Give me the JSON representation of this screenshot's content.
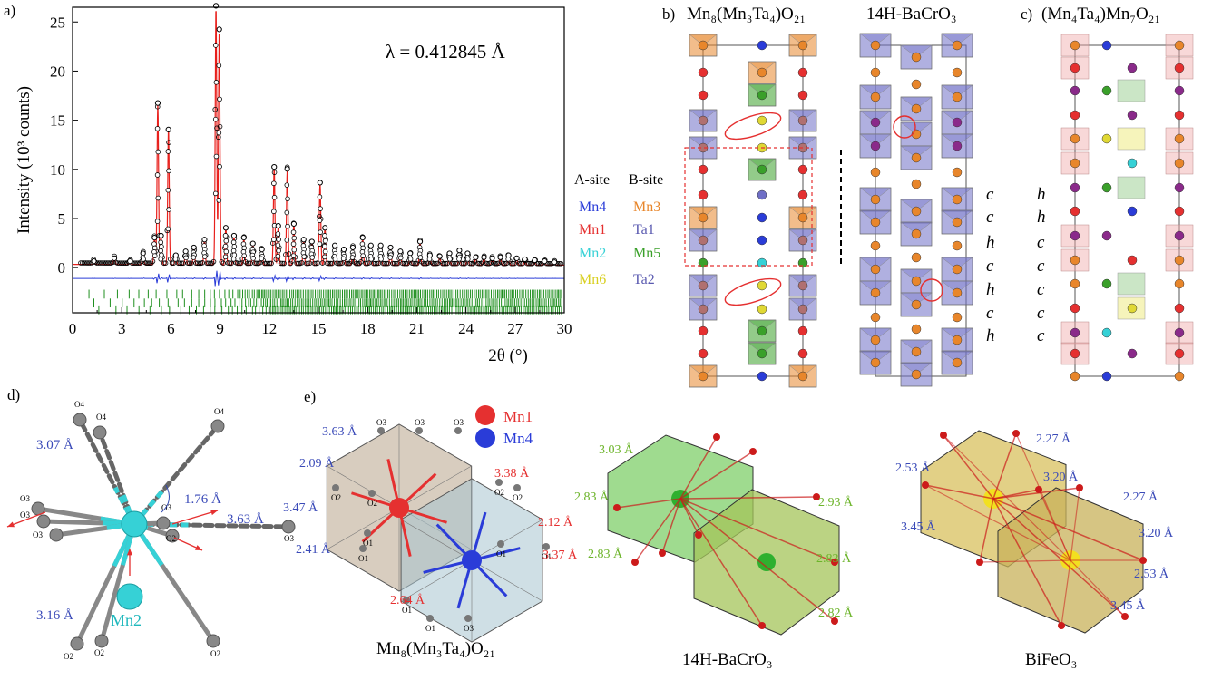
{
  "panel_letters": {
    "a": "a)",
    "b": "b)",
    "c": "c)",
    "d": "d)",
    "e": "e)"
  },
  "colors": {
    "obs": "#000000",
    "calc": "#e8201c",
    "diff": "#2a3cd8",
    "ticks": "#1f8f1f",
    "mn1": "#e53030",
    "mn2": "#36d1d6",
    "mn3": "#e8862b",
    "mn4": "#2a3cd8",
    "mn5": "#3aa02a",
    "mn6": "#e0d834",
    "ta": "#6f6fc6",
    "purple": "#8a2a8a",
    "o": "#cc1b1b",
    "o_grey": "#7a7a7a"
  },
  "chart_data": {
    "type": "line",
    "title": "",
    "annotation": "λ =  0.412845 Å",
    "xlabel": "2θ (°)",
    "ylabel": "Intensity (10³ counts)",
    "xlim": [
      0,
      30
    ],
    "ylim": [
      -4.6,
      26.5
    ],
    "xticks": [
      0,
      3,
      6,
      9,
      12,
      15,
      18,
      21,
      24,
      27,
      30
    ],
    "yticks": [
      0,
      5,
      10,
      15,
      20,
      25
    ],
    "peaks": [
      {
        "x": 1.3,
        "y": 0.4
      },
      {
        "x": 2.55,
        "y": 0.7
      },
      {
        "x": 3.5,
        "y": 0.4
      },
      {
        "x": 4.3,
        "y": 1.2
      },
      {
        "x": 5.0,
        "y": 2.8
      },
      {
        "x": 5.2,
        "y": 16.5
      },
      {
        "x": 5.4,
        "y": 3.0
      },
      {
        "x": 5.85,
        "y": 13.8
      },
      {
        "x": 6.3,
        "y": 1.0
      },
      {
        "x": 6.9,
        "y": 1.4
      },
      {
        "x": 7.4,
        "y": 1.8
      },
      {
        "x": 8.05,
        "y": 2.6
      },
      {
        "x": 8.75,
        "y": 26.4
      },
      {
        "x": 8.95,
        "y": 24.0
      },
      {
        "x": 9.35,
        "y": 3.8
      },
      {
        "x": 9.85,
        "y": 3.0
      },
      {
        "x": 10.45,
        "y": 2.8
      },
      {
        "x": 11.0,
        "y": 2.2
      },
      {
        "x": 11.55,
        "y": 1.6
      },
      {
        "x": 12.3,
        "y": 10.0
      },
      {
        "x": 12.55,
        "y": 4.0
      },
      {
        "x": 13.1,
        "y": 9.8
      },
      {
        "x": 13.5,
        "y": 4.2
      },
      {
        "x": 14.1,
        "y": 2.6
      },
      {
        "x": 14.6,
        "y": 2.4
      },
      {
        "x": 15.1,
        "y": 8.4
      },
      {
        "x": 15.4,
        "y": 3.8
      },
      {
        "x": 16.0,
        "y": 2.0
      },
      {
        "x": 16.55,
        "y": 1.6
      },
      {
        "x": 17.1,
        "y": 1.8
      },
      {
        "x": 17.7,
        "y": 2.8
      },
      {
        "x": 18.2,
        "y": 2.0
      },
      {
        "x": 18.8,
        "y": 2.0
      },
      {
        "x": 19.4,
        "y": 1.8
      },
      {
        "x": 20.0,
        "y": 1.4
      },
      {
        "x": 20.6,
        "y": 1.2
      },
      {
        "x": 21.2,
        "y": 2.4
      },
      {
        "x": 21.8,
        "y": 1.0
      },
      {
        "x": 22.4,
        "y": 0.9
      },
      {
        "x": 23.0,
        "y": 1.2
      },
      {
        "x": 23.6,
        "y": 1.5
      },
      {
        "x": 24.1,
        "y": 1.2
      },
      {
        "x": 24.6,
        "y": 0.8
      },
      {
        "x": 25.1,
        "y": 0.8
      },
      {
        "x": 25.6,
        "y": 0.7
      },
      {
        "x": 26.1,
        "y": 0.8
      },
      {
        "x": 26.6,
        "y": 1.0
      },
      {
        "x": 27.1,
        "y": 0.7
      },
      {
        "x": 27.6,
        "y": 0.6
      },
      {
        "x": 28.2,
        "y": 0.5
      },
      {
        "x": 28.8,
        "y": 0.4
      },
      {
        "x": 29.4,
        "y": 0.3
      }
    ],
    "difference_offset": -1.1,
    "ticks_row1_offset": -2.7,
    "ticks_row2_offset": -3.6,
    "ticks_row3_offset": -4.3
  },
  "panel_b": {
    "title1": "Mn₈(Mn₃Ta₄)O₂₁",
    "title2": "14H-BaCrO₃",
    "site_header_a": "A-site",
    "site_header_b": "B-site",
    "a_sites": [
      "Mn4",
      "Mn1",
      "Mn2",
      "Mn6"
    ],
    "b_sites": [
      "Mn3",
      "Ta1",
      "Mn5",
      "Ta2"
    ],
    "stacking": [
      "c",
      "c",
      "h",
      "c",
      "h",
      "c",
      "h"
    ]
  },
  "panel_c": {
    "title": "(Mn₄Ta₄)Mn₇O₂₁",
    "stacking": [
      "h",
      "h",
      "c",
      "c",
      "c",
      "c",
      "c"
    ]
  },
  "panel_d": {
    "distances": [
      "3.07 Å",
      "1.76 Å",
      "3.63 Å",
      "3.16 Å"
    ],
    "center_label": "Mn2",
    "o_labels": [
      "O4",
      "O4",
      "O4",
      "O3",
      "O3",
      "O3",
      "O3",
      "O3",
      "O2",
      "O2",
      "O2"
    ]
  },
  "panel_e": {
    "legend": [
      "Mn1",
      "Mn4"
    ],
    "poly1_caption": "Mn₈(Mn₃Ta₄)O₂₁",
    "poly1_blue_distances": [
      "3.63 Å",
      "2.09 Å",
      "3.47 Å",
      "2.41 Å"
    ],
    "poly1_red_distances": [
      "3.38 Å",
      "2.12 Å",
      "3.37 Å",
      "2.64 Å"
    ],
    "poly1_o_labels": [
      "O3",
      "O3",
      "O3",
      "O2",
      "O2",
      "O2",
      "O2",
      "O1",
      "O1",
      "O1",
      "O1",
      "O1",
      "O1"
    ],
    "poly2_caption": "14H-BaCrO₃",
    "poly2_distances": [
      "3.03 Å",
      "2.83 Å",
      "2.93 Å",
      "2.83 Å",
      "2.83 Å",
      "2.82 Å"
    ],
    "poly3_caption": "BiFeO₃",
    "poly3_distances": [
      "2.27 Å",
      "2.53 Å",
      "3.20 Å",
      "2.27 Å",
      "3.45 Å",
      "3.20 Å",
      "2.53 Å",
      "3.45 Å"
    ]
  }
}
